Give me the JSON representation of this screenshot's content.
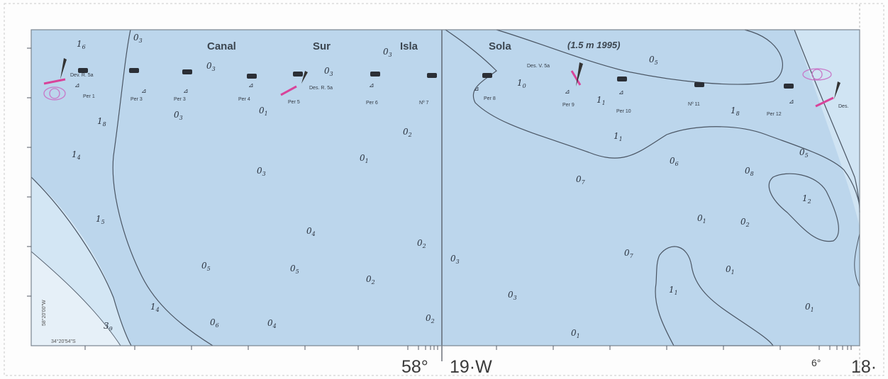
{
  "map": {
    "place_names": [
      "Canal",
      "Sur",
      "Isla",
      "Sola"
    ],
    "note": "(1.5 m 1995)",
    "piers": [
      "Per 1",
      "Per 3",
      "Per 3",
      "Per 4",
      "Per 5",
      "Per 6",
      "Nº 7",
      "Per 8",
      "Per 9",
      "Per 10",
      "Nº 11",
      "Per 12"
    ],
    "markers": [
      "Dev. R. 5a",
      "Des. R. 5a",
      "Des. V. 5a",
      "Des."
    ],
    "depths": [
      {
        "m": "1",
        "d": "6"
      },
      {
        "m": "0",
        "d": "3"
      },
      {
        "m": "0",
        "d": "3"
      },
      {
        "m": "0",
        "d": "3"
      },
      {
        "m": "0",
        "d": "3"
      },
      {
        "m": "0",
        "d": "3"
      },
      {
        "m": "0",
        "d": "1"
      },
      {
        "m": "1",
        "d": "8"
      },
      {
        "m": "1",
        "d": "4"
      },
      {
        "m": "0",
        "d": "3"
      },
      {
        "m": "0",
        "d": "2"
      },
      {
        "m": "0",
        "d": "1"
      },
      {
        "m": "1",
        "d": "5"
      },
      {
        "m": "0",
        "d": "4"
      },
      {
        "m": "0",
        "d": "2"
      },
      {
        "m": "0",
        "d": "5"
      },
      {
        "m": "0",
        "d": "5"
      },
      {
        "m": "0",
        "d": "2"
      },
      {
        "m": "1",
        "d": "4"
      },
      {
        "m": "3",
        "d": "9"
      },
      {
        "m": "0",
        "d": "6"
      },
      {
        "m": "0",
        "d": "4"
      },
      {
        "m": "0",
        "d": "2"
      },
      {
        "m": "0",
        "d": "3"
      },
      {
        "m": "0",
        "d": "3"
      },
      {
        "m": "0",
        "d": "1"
      },
      {
        "m": "0",
        "d": "5"
      },
      {
        "m": "1",
        "d": "0"
      },
      {
        "m": "1",
        "d": "1"
      },
      {
        "m": "1",
        "d": "8"
      },
      {
        "m": "1",
        "d": "1"
      },
      {
        "m": "0",
        "d": "7"
      },
      {
        "m": "0",
        "d": "6"
      },
      {
        "m": "0",
        "d": "8"
      },
      {
        "m": "0",
        "d": "5"
      },
      {
        "m": "1",
        "d": "2"
      },
      {
        "m": "0",
        "d": "1"
      },
      {
        "m": "0",
        "d": "2"
      },
      {
        "m": "0",
        "d": "7"
      },
      {
        "m": "0",
        "d": "1"
      },
      {
        "m": "1",
        "d": "1"
      },
      {
        "m": "0",
        "d": "1"
      }
    ],
    "axis": {
      "bottom_left": "58°",
      "bottom_mid": "19·W",
      "bottom_right_small": "6°",
      "bottom_right": "18·",
      "left_coord": "58°20'00\"W",
      "bottom_coord": "34°20'54\"S"
    },
    "colors": {
      "water": "#bcd6ec",
      "shallow": "#d3e6f4",
      "frame": "#7b8590",
      "contour": "#4a5563",
      "buoy_red": "#d8449a",
      "buoy_ring": "#c878c8"
    }
  }
}
